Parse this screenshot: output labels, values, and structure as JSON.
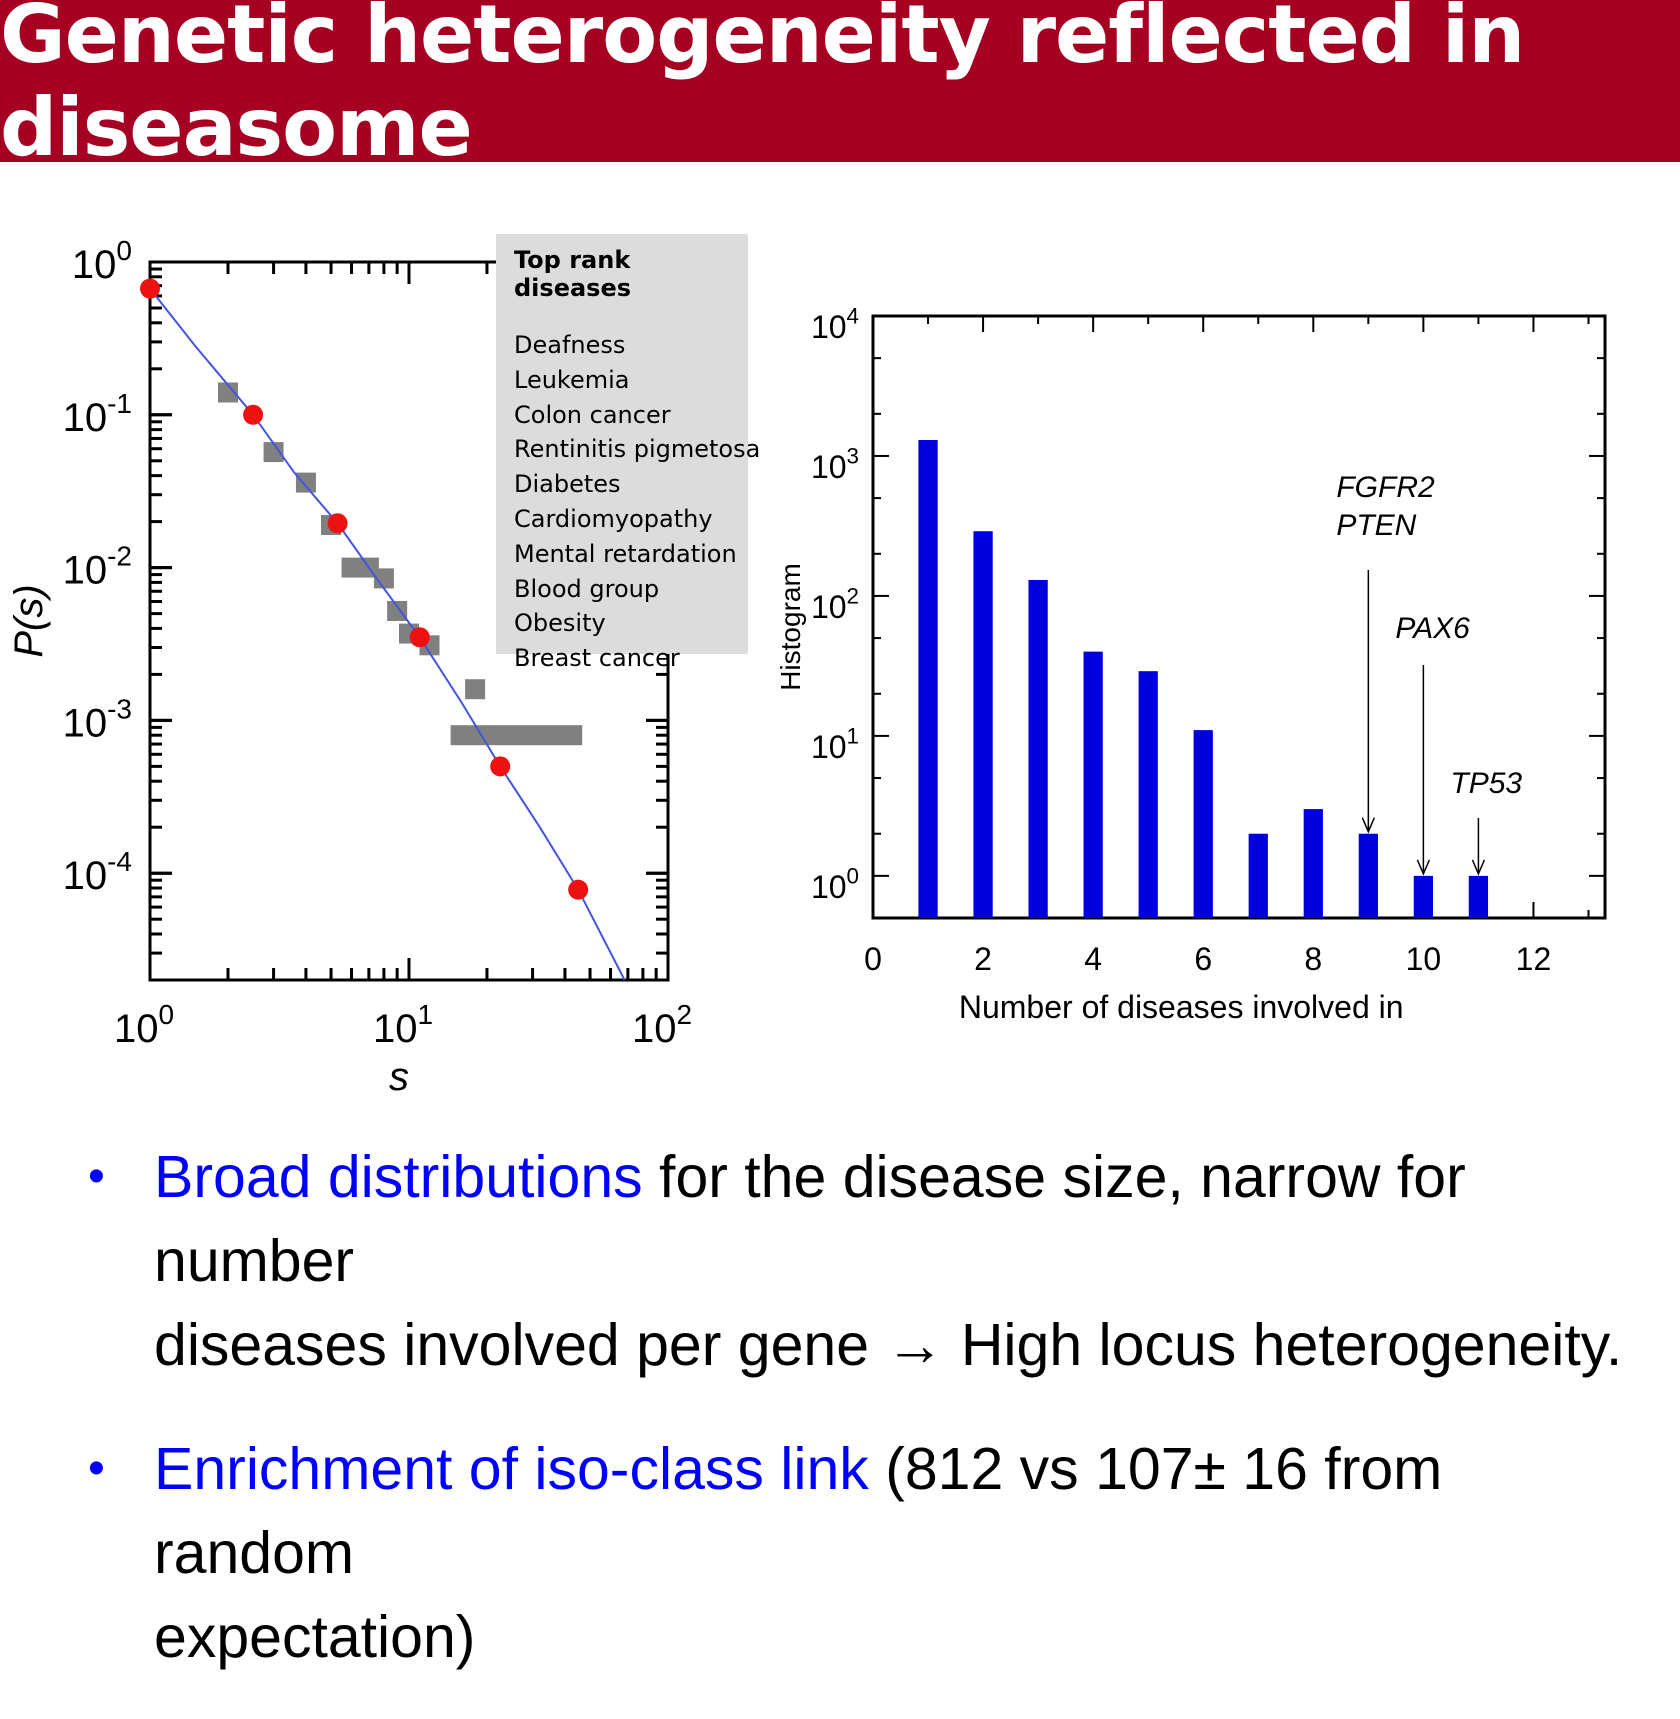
{
  "slide": {
    "title": "Genetic heterogeneity reflected in diseasome"
  },
  "chart_data": [
    {
      "type": "scatter",
      "xlabel": "s",
      "ylabel": "P(s)",
      "x_scale": "log",
      "y_scale": "log",
      "xlim": [
        1,
        100
      ],
      "ylim": [
        2e-05,
        1
      ],
      "x_ticks": [
        {
          "base": "10",
          "exp": "0",
          "value": 1
        },
        {
          "base": "10",
          "exp": "1",
          "value": 10
        },
        {
          "base": "10",
          "exp": "2",
          "value": 100
        }
      ],
      "y_ticks": [
        {
          "base": "10",
          "exp": "0",
          "value": 1
        },
        {
          "base": "10",
          "exp": "-1",
          "value": 0.1
        },
        {
          "base": "10",
          "exp": "-2",
          "value": 0.01
        },
        {
          "base": "10",
          "exp": "-3",
          "value": 0.001
        },
        {
          "base": "10",
          "exp": "-4",
          "value": 0.0001
        }
      ],
      "series": [
        {
          "marker": "circle",
          "color": "#ee1111",
          "points": [
            {
              "x": 1.0,
              "y": 0.67
            },
            {
              "x": 2.5,
              "y": 0.1
            },
            {
              "x": 5.3,
              "y": 0.0195
            },
            {
              "x": 11.0,
              "y": 0.0035
            },
            {
              "x": 22.5,
              "y": 0.0005
            },
            {
              "x": 45.0,
              "y": 7.8e-05
            }
          ]
        },
        {
          "marker": "square",
          "color": "#808080",
          "points": [
            {
              "x": 2.0,
              "y": 0.14
            },
            {
              "x": 3.0,
              "y": 0.057
            },
            {
              "x": 4.0,
              "y": 0.036
            },
            {
              "x": 5.0,
              "y": 0.019
            },
            {
              "x": 6.0,
              "y": 0.01
            },
            {
              "x": 7.0,
              "y": 0.01
            },
            {
              "x": 8.0,
              "y": 0.0085
            },
            {
              "x": 9.0,
              "y": 0.0052
            },
            {
              "x": 10.0,
              "y": 0.0037
            },
            {
              "x": 12.0,
              "y": 0.0031
            },
            {
              "x": 18.0,
              "y": 0.0016
            },
            {
              "x": 15.0,
              "y": 0.0008,
              "x_end": 45.0
            }
          ]
        },
        {
          "type": "line",
          "color": "#4455dd",
          "points": [
            {
              "x": 1.0,
              "y": 0.67
            },
            {
              "x": 1.5,
              "y": 0.28
            },
            {
              "x": 2.5,
              "y": 0.1
            },
            {
              "x": 3.6,
              "y": 0.042
            },
            {
              "x": 5.3,
              "y": 0.0195
            },
            {
              "x": 7.5,
              "y": 0.0085
            },
            {
              "x": 11.0,
              "y": 0.0035
            },
            {
              "x": 16.0,
              "y": 0.0013
            },
            {
              "x": 22.5,
              "y": 0.0005
            },
            {
              "x": 32.0,
              "y": 0.0002
            },
            {
              "x": 45.0,
              "y": 7.8e-05
            },
            {
              "x": 68.0,
              "y": 2e-05
            }
          ]
        }
      ],
      "legend": {
        "title": "Top rank diseases",
        "items": [
          "Deafness",
          "Leukemia",
          "Colon cancer",
          "Rentinitis pigmetosa",
          "Diabetes",
          "Cardiomyopathy",
          "Mental retardation",
          "Blood group",
          "Obesity",
          "Breast cancer"
        ],
        "placement": "top-right"
      }
    },
    {
      "type": "bar",
      "xlabel": "Number of diseases involved in",
      "ylabel": "Histogram",
      "y_scale": "log",
      "xlim": [
        0,
        13.3
      ],
      "ylim": [
        0.5,
        10000
      ],
      "x_ticks": [
        "0",
        "2",
        "4",
        "6",
        "8",
        "10",
        "12"
      ],
      "y_ticks": [
        {
          "base": "10",
          "exp": "4",
          "value": 10000
        },
        {
          "base": "10",
          "exp": "3",
          "value": 1000
        },
        {
          "base": "10",
          "exp": "2",
          "value": 100
        },
        {
          "base": "10",
          "exp": "1",
          "value": 10
        },
        {
          "base": "10",
          "exp": "0",
          "value": 1
        }
      ],
      "color": "#0000dd",
      "x": [
        1,
        2,
        3,
        4,
        5,
        6,
        7,
        8,
        9,
        10,
        11
      ],
      "values": [
        1300,
        290,
        130,
        40,
        29,
        11,
        2,
        3,
        2,
        1,
        1
      ],
      "annotations": [
        {
          "text": [
            "FGFR2",
            "PTEN"
          ],
          "x": 9
        },
        {
          "text": [
            "PAX6"
          ],
          "x": 10
        },
        {
          "text": [
            "TP53"
          ],
          "x": 11
        }
      ]
    }
  ],
  "bullets": [
    {
      "highlight": "Broad distributions",
      "line1_rest": " for the disease size, narrow for number",
      "line2": "diseases involved per gene → High locus heterogeneity."
    },
    {
      "highlight": "Enrichment of iso-class link",
      "line1_rest": " (812 vs 107± 16 from random",
      "line2": "expectation)"
    }
  ],
  "colors": {
    "title_bar": "#a50021",
    "highlight": "#0000ff"
  }
}
